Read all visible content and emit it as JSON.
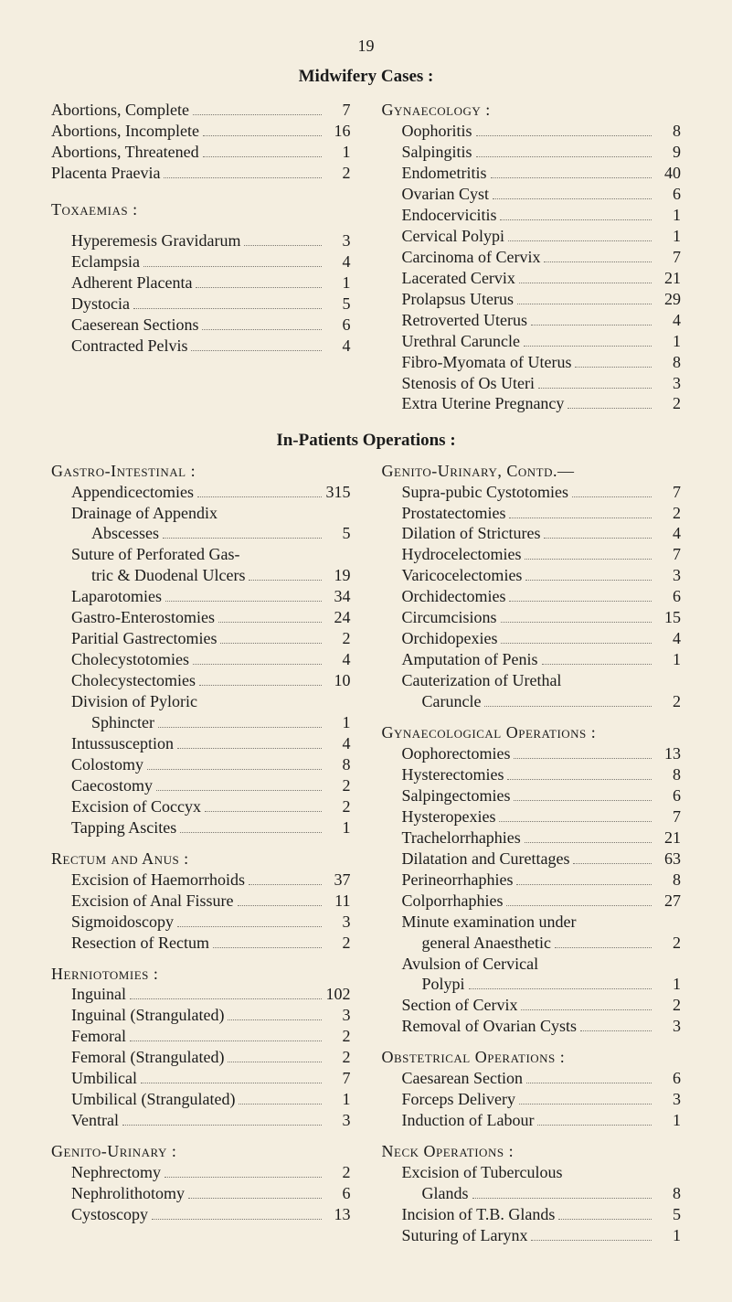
{
  "page_number": "19",
  "main_title": "Midwifery Cases :",
  "sub_title": "In-Patients Operations :",
  "left_top": {
    "items": [
      {
        "label": "Abortions, Complete",
        "value": "7",
        "indent": 0
      },
      {
        "label": "Abortions, Incomplete",
        "value": "16",
        "indent": 0
      },
      {
        "label": "Abortions, Threatened",
        "value": "1",
        "indent": 0
      },
      {
        "label": "Placenta Praevia",
        "value": "2",
        "indent": 0
      }
    ]
  },
  "tox_header": "Toxaemias :",
  "tox": {
    "items": [
      {
        "label": "Hyperemesis Gravidarum",
        "value": "3",
        "indent": 1
      },
      {
        "label": "Eclampsia",
        "value": "4",
        "indent": 1
      },
      {
        "label": "Adherent Placenta",
        "value": "1",
        "indent": 1
      },
      {
        "label": "Dystocia",
        "value": "5",
        "indent": 1
      },
      {
        "label": "Caeserean Sections",
        "value": "6",
        "indent": 1
      },
      {
        "label": "Contracted Pelvis",
        "value": "4",
        "indent": 1
      }
    ]
  },
  "gyn_header": "Gynaecology :",
  "gyn": {
    "items": [
      {
        "label": "Oophoritis",
        "value": "8",
        "indent": 1
      },
      {
        "label": "Salpingitis",
        "value": "9",
        "indent": 1
      },
      {
        "label": "Endometritis",
        "value": "40",
        "indent": 1
      },
      {
        "label": "Ovarian Cyst",
        "value": "6",
        "indent": 1
      },
      {
        "label": "Endocervicitis",
        "value": "1",
        "indent": 1
      },
      {
        "label": "Cervical Polypi",
        "value": "1",
        "indent": 1
      },
      {
        "label": "Carcinoma of Cervix",
        "value": "7",
        "indent": 1
      },
      {
        "label": "Lacerated Cervix",
        "value": "21",
        "indent": 1
      },
      {
        "label": "Prolapsus Uterus",
        "value": "29",
        "indent": 1
      },
      {
        "label": "Retroverted Uterus",
        "value": "4",
        "indent": 1
      },
      {
        "label": "Urethral Caruncle",
        "value": "1",
        "indent": 1
      },
      {
        "label": "Fibro-Myomata of Uterus",
        "value": "8",
        "indent": 1
      },
      {
        "label": "Stenosis of Os Uteri",
        "value": "3",
        "indent": 1
      },
      {
        "label": "Extra Uterine Pregnancy",
        "value": "2",
        "indent": 1
      }
    ]
  },
  "gastro_header": "Gastro-Intestinal :",
  "gastro": {
    "items": [
      {
        "label": "Appendicectomies",
        "value": "315",
        "indent": 1
      },
      {
        "label": "Drainage of Appendix",
        "value": "",
        "indent": 1,
        "nodots": true
      },
      {
        "label": "Abscesses",
        "value": "5",
        "indent": 2
      },
      {
        "label": "Suture of Perforated Gas-",
        "value": "",
        "indent": 1,
        "nodots": true
      },
      {
        "label": "tric & Duodenal Ulcers",
        "value": "19",
        "indent": 2
      },
      {
        "label": "Laparotomies",
        "value": "34",
        "indent": 1
      },
      {
        "label": "Gastro-Enterostomies",
        "value": "24",
        "indent": 1
      },
      {
        "label": "Paritial Gastrectomies",
        "value": "2",
        "indent": 1
      },
      {
        "label": "Cholecystotomies",
        "value": "4",
        "indent": 1
      },
      {
        "label": "Cholecystectomies",
        "value": "10",
        "indent": 1
      },
      {
        "label": "Division of Pyloric",
        "value": "",
        "indent": 1,
        "nodots": true
      },
      {
        "label": "Sphincter",
        "value": "1",
        "indent": 2
      },
      {
        "label": "Intussusception",
        "value": "4",
        "indent": 1
      },
      {
        "label": "Colostomy",
        "value": "8",
        "indent": 1
      },
      {
        "label": "Caecostomy",
        "value": "2",
        "indent": 1
      },
      {
        "label": "Excision of Coccyx",
        "value": "2",
        "indent": 1
      },
      {
        "label": "Tapping Ascites",
        "value": "1",
        "indent": 1
      }
    ]
  },
  "rectum_header": "Rectum and Anus :",
  "rectum": {
    "items": [
      {
        "label": "Excision of Haemorrhoids",
        "value": "37",
        "indent": 1
      },
      {
        "label": "Excision of Anal Fissure",
        "value": "11",
        "indent": 1
      },
      {
        "label": "Sigmoidoscopy",
        "value": "3",
        "indent": 1
      },
      {
        "label": "Resection of Rectum",
        "value": "2",
        "indent": 1
      }
    ]
  },
  "hernia_header": "Herniotomies :",
  "hernia": {
    "items": [
      {
        "label": "Inguinal",
        "value": "102",
        "indent": 1
      },
      {
        "label": "Inguinal (Strangulated)",
        "value": "3",
        "indent": 1
      },
      {
        "label": "Femoral",
        "value": "2",
        "indent": 1
      },
      {
        "label": "Femoral (Strangulated)",
        "value": "2",
        "indent": 1
      },
      {
        "label": "Umbilical",
        "value": "7",
        "indent": 1
      },
      {
        "label": "Umbilical (Strangulated)",
        "value": "1",
        "indent": 1
      },
      {
        "label": "Ventral",
        "value": "3",
        "indent": 1
      }
    ]
  },
  "genito_left_header": "Genito-Urinary :",
  "genito_left": {
    "items": [
      {
        "label": "Nephrectomy",
        "value": "2",
        "indent": 1
      },
      {
        "label": "Nephrolithotomy",
        "value": "6",
        "indent": 1
      },
      {
        "label": "Cystoscopy",
        "value": "13",
        "indent": 1
      }
    ]
  },
  "genito_right_header": "Genito-Urinary, Contd.—",
  "genito_right": {
    "items": [
      {
        "label": "Supra-pubic Cystotomies",
        "value": "7",
        "indent": 1
      },
      {
        "label": "Prostatectomies",
        "value": "2",
        "indent": 1
      },
      {
        "label": "Dilation of Strictures",
        "value": "4",
        "indent": 1
      },
      {
        "label": "Hydrocelectomies",
        "value": "7",
        "indent": 1
      },
      {
        "label": "Varicocelectomies",
        "value": "3",
        "indent": 1
      },
      {
        "label": "Orchidectomies",
        "value": "6",
        "indent": 1
      },
      {
        "label": "Circumcisions",
        "value": "15",
        "indent": 1
      },
      {
        "label": "Orchidopexies",
        "value": "4",
        "indent": 1
      },
      {
        "label": "Amputation of Penis",
        "value": "1",
        "indent": 1
      },
      {
        "label": "Cauterization of Urethal",
        "value": "",
        "indent": 1,
        "nodots": true
      },
      {
        "label": "Caruncle",
        "value": "2",
        "indent": 2
      }
    ]
  },
  "gyn_ops_header": "Gynaecological Operations :",
  "gyn_ops": {
    "items": [
      {
        "label": "Oophorectomies",
        "value": "13",
        "indent": 1
      },
      {
        "label": "Hysterectomies",
        "value": "8",
        "indent": 1
      },
      {
        "label": "Salpingectomies",
        "value": "6",
        "indent": 1
      },
      {
        "label": "Hysteropexies",
        "value": "7",
        "indent": 1
      },
      {
        "label": "Trachelorrhaphies",
        "value": "21",
        "indent": 1
      },
      {
        "label": "Dilatation and Curettages",
        "value": "63",
        "indent": 1
      },
      {
        "label": "Perineorrhaphies",
        "value": "8",
        "indent": 1
      },
      {
        "label": "Colporrhaphies",
        "value": "27",
        "indent": 1
      },
      {
        "label": "Minute examination under",
        "value": "",
        "indent": 1,
        "nodots": true
      },
      {
        "label": "general Anaesthetic",
        "value": "2",
        "indent": 2
      },
      {
        "label": "Avulsion of Cervical",
        "value": "",
        "indent": 1,
        "nodots": true
      },
      {
        "label": "Polypi",
        "value": "1",
        "indent": 2
      },
      {
        "label": "Section of Cervix",
        "value": "2",
        "indent": 1
      },
      {
        "label": "Removal of Ovarian Cysts",
        "value": "3",
        "indent": 1
      }
    ]
  },
  "obst_header": "Obstetrical Operations :",
  "obst": {
    "items": [
      {
        "label": "Caesarean Section",
        "value": "6",
        "indent": 1
      },
      {
        "label": "Forceps Delivery",
        "value": "3",
        "indent": 1
      },
      {
        "label": "Induction of Labour",
        "value": "1",
        "indent": 1
      }
    ]
  },
  "neck_header": "Neck Operations :",
  "neck": {
    "items": [
      {
        "label": "Excision of Tuberculous",
        "value": "",
        "indent": 1,
        "nodots": true
      },
      {
        "label": "Glands",
        "value": "8",
        "indent": 2
      },
      {
        "label": "Incision of T.B. Glands",
        "value": "5",
        "indent": 1
      },
      {
        "label": "Suturing of Larynx",
        "value": "1",
        "indent": 1
      }
    ]
  }
}
